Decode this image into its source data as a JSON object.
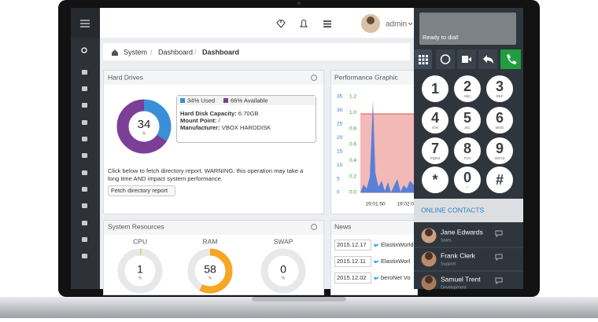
{
  "header": {
    "user": "admin"
  },
  "breadcrumb": [
    "System",
    "Dashboard",
    "Dashboard"
  ],
  "hard_drives": {
    "title": "Hard Drives",
    "percent_sign": "%",
    "segments": [
      {
        "label": "34% Used",
        "value": 34,
        "color": "#3a8fd6"
      },
      {
        "label": "66% Available",
        "value": 66,
        "color": "#7b3f98"
      }
    ],
    "details": [
      {
        "label": "Hard Disk Capacity:",
        "value": "6.70GB"
      },
      {
        "label": "Mount Point:",
        "value": "/"
      },
      {
        "label": "Manufacturer:",
        "value": "VBOX HARDDISK"
      }
    ],
    "notice": [
      "Click below to fetch directory report. WARNING: this operation may take a",
      "long time AND impact system performance."
    ],
    "button": "Fetch directory report"
  },
  "performance": {
    "title": "Performance Graphic",
    "y_ticks": [
      35,
      30,
      25,
      20,
      15,
      10,
      5,
      0
    ],
    "y2_ticks": [
      "1.2",
      "1.0",
      "0.8",
      "0.6",
      "0.4",
      "0.2",
      "0.0"
    ],
    "x_ticks": [
      "19:01:50",
      "19:02:00"
    ]
  },
  "system_resources": {
    "title": "System Resources",
    "gauges": [
      {
        "name": "CPU",
        "value": 1,
        "color": "#c5d84a"
      },
      {
        "name": "RAM",
        "value": 58,
        "color": "#f5a623"
      },
      {
        "name": "SWAP",
        "value": 0,
        "color": "#9aa3ad"
      }
    ]
  },
  "news": {
    "title": "News",
    "items": [
      {
        "date": "2015.12.17",
        "text": "ElastixWorld"
      },
      {
        "date": "2015.12.11",
        "text": "ElastixWorl"
      },
      {
        "date": "2015.12.02",
        "text": "beroNet Vo"
      }
    ]
  },
  "dialer": {
    "status": "Ready to dial!",
    "keys": [
      {
        "digit": "1"
      },
      {
        "digit": "2",
        "letters": "ABC"
      },
      {
        "digit": "3",
        "letters": "DEF"
      },
      {
        "digit": "4",
        "letters": "GHI"
      },
      {
        "digit": "5",
        "letters": "JKL"
      },
      {
        "digit": "6",
        "letters": "MNO"
      },
      {
        "digit": "7",
        "letters": "PQRS"
      },
      {
        "digit": "8",
        "letters": "TUV"
      },
      {
        "digit": "9",
        "letters": "WXYZ"
      },
      {
        "digit": "*"
      },
      {
        "digit": "0",
        "letters": "+"
      },
      {
        "digit": "#"
      }
    ]
  },
  "contacts": {
    "title": "ONLINE CONTACTS",
    "people": [
      {
        "name": "Jane Edwards",
        "role": "Sales"
      },
      {
        "name": "Frank Clerk",
        "role": "Support"
      },
      {
        "name": "Samuel Trent",
        "role": "Development"
      }
    ]
  }
}
